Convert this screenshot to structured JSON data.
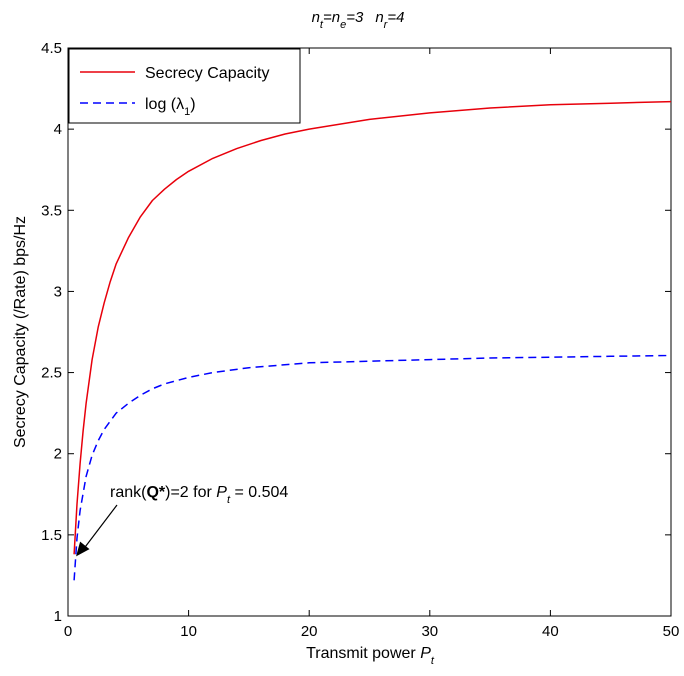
{
  "chart_data": {
    "type": "line",
    "title_parts": {
      "nt_base": "n",
      "nt_sub": "t",
      "ne_base": "=n",
      "ne_sub": "e",
      "eq_val": "=3",
      "nr_base": "n",
      "nr_sub": "r",
      "nr_val": "=4"
    },
    "xlabel": "Transmit power ",
    "xlabel_var": "P",
    "xlabel_sub": "t",
    "ylabel": "Secrecy Capacity (/Rate) bps/Hz",
    "xlim": [
      0,
      50
    ],
    "ylim": [
      1,
      4.5
    ],
    "xticks": [
      0,
      10,
      20,
      30,
      40,
      50
    ],
    "yticks": [
      1,
      1.5,
      2,
      2.5,
      3,
      3.5,
      4,
      4.5
    ],
    "xtick_labels": [
      "0",
      "10",
      "20",
      "30",
      "40",
      "50"
    ],
    "ytick_labels": [
      "1",
      "1.5",
      "2",
      "2.5",
      "3",
      "3.5",
      "4",
      "4.5"
    ],
    "grid": false,
    "legend_position": "top-left",
    "series": [
      {
        "name": "Secrecy Capacity",
        "color": "#e8000b",
        "style": "solid",
        "x": [
          0.504,
          0.75,
          1,
          1.25,
          1.5,
          2,
          2.5,
          3,
          3.5,
          4,
          5,
          6,
          7,
          8,
          9,
          10,
          12,
          14,
          16,
          18,
          20,
          25,
          30,
          35,
          40,
          45,
          50
        ],
        "y": [
          1.38,
          1.69,
          1.94,
          2.14,
          2.31,
          2.58,
          2.78,
          2.93,
          3.06,
          3.17,
          3.33,
          3.46,
          3.56,
          3.63,
          3.69,
          3.74,
          3.82,
          3.88,
          3.93,
          3.97,
          4.0,
          4.06,
          4.1,
          4.13,
          4.15,
          4.16,
          4.17
        ]
      },
      {
        "name": "log (λ1)",
        "legend_base": "log (λ",
        "legend_sub": "1",
        "legend_close": ")",
        "color": "#0000ff",
        "style": "dashed",
        "x": [
          0.504,
          0.75,
          1,
          1.5,
          2,
          2.5,
          3,
          4,
          5,
          6,
          7,
          8,
          10,
          12,
          15,
          20,
          25,
          30,
          35,
          40,
          45,
          50
        ],
        "y": [
          1.22,
          1.48,
          1.65,
          1.86,
          1.99,
          2.08,
          2.15,
          2.25,
          2.31,
          2.36,
          2.4,
          2.43,
          2.47,
          2.5,
          2.53,
          2.56,
          2.57,
          2.58,
          2.59,
          2.595,
          2.6,
          2.605
        ]
      }
    ],
    "annotation": {
      "text_prefix": "rank(",
      "text_bold": "Q*",
      "text_mid": ")=2 for ",
      "text_var": "P",
      "text_sub": "t",
      "text_suffix": " = 0.504",
      "point_x": 0.504,
      "point_y": 1.38
    }
  }
}
